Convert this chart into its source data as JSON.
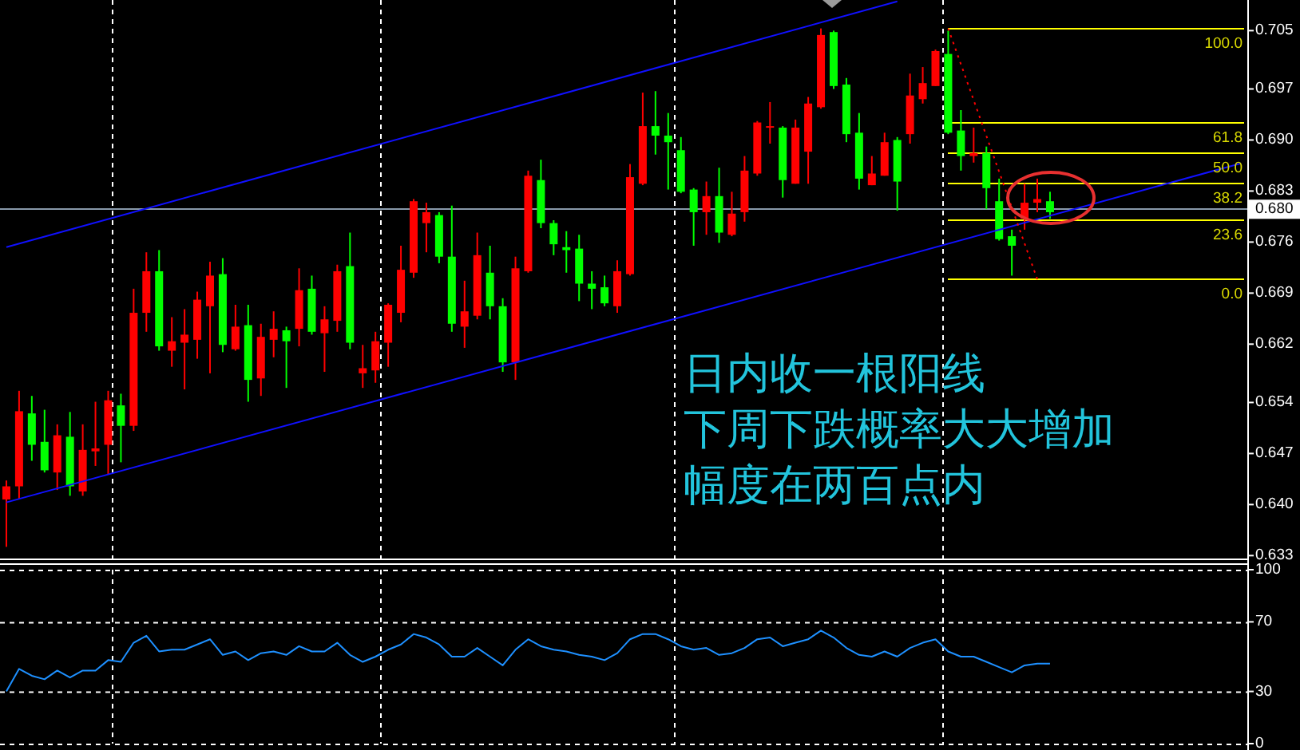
{
  "chart_data": [
    {
      "type": "candlestick",
      "annotations": [
        "日内收一根阳线",
        "下周下跌概率大大增加",
        "幅度在两百点内",
        {
          "text": "100.0",
          "y": 0.7053
        },
        {
          "text": "61.8",
          "y": 0.6924
        },
        {
          "text": "50.0",
          "y": 0.6882
        },
        {
          "text": "38.2",
          "y": 0.684
        },
        {
          "text": "23.6",
          "y": 0.679
        },
        {
          "text": "0.0",
          "y": 0.6709
        }
      ],
      "categories": [
        null,
        null,
        null,
        null,
        null,
        null,
        null,
        null,
        null,
        null,
        null,
        null,
        null,
        null,
        null,
        null,
        null,
        null,
        null,
        null,
        null,
        null,
        null,
        null,
        null,
        null,
        null,
        null,
        null,
        null,
        null,
        null,
        null,
        null,
        null,
        null,
        null,
        null,
        null,
        null,
        null,
        null,
        null,
        null,
        null,
        null,
        null,
        null,
        null,
        null,
        null,
        null,
        null,
        null,
        null,
        null,
        null,
        null,
        null,
        null,
        null,
        null,
        null,
        null,
        null,
        null,
        null,
        null,
        null,
        null,
        null,
        null,
        null,
        null,
        null,
        null,
        null,
        null,
        null,
        null,
        null,
        null,
        null,
        null,
        null,
        null,
        null,
        null,
        null,
        null,
        null,
        null,
        null,
        null,
        null,
        null,
        null,
        null
      ],
      "ohlc": [
        [
          0.6407,
          0.6433,
          0.6342,
          0.6425
        ],
        [
          0.6425,
          0.6556,
          0.6407,
          0.6528
        ],
        [
          0.6525,
          0.6549,
          0.646,
          0.6482
        ],
        [
          0.6486,
          0.653,
          0.6444,
          0.6447
        ],
        [
          0.6444,
          0.651,
          0.642,
          0.6495
        ],
        [
          0.6493,
          0.6527,
          0.6412,
          0.6425
        ],
        [
          0.6418,
          0.651,
          0.6412,
          0.6475
        ],
        [
          0.6473,
          0.6541,
          0.6453,
          0.6477
        ],
        [
          0.6482,
          0.6556,
          0.6442,
          0.6543
        ],
        [
          0.6536,
          0.6552,
          0.6458,
          0.6508
        ],
        [
          0.6508,
          0.6696,
          0.6501,
          0.6663
        ],
        [
          0.6663,
          0.6746,
          0.6637,
          0.672
        ],
        [
          0.672,
          0.6749,
          0.6611,
          0.6617
        ],
        [
          0.6611,
          0.6657,
          0.6589,
          0.6624
        ],
        [
          0.6622,
          0.6668,
          0.6558,
          0.6633
        ],
        [
          0.6626,
          0.6692,
          0.66,
          0.6681
        ],
        [
          0.6672,
          0.6733,
          0.658,
          0.6714
        ],
        [
          0.6716,
          0.6738,
          0.6609,
          0.6619
        ],
        [
          0.6613,
          0.6674,
          0.6611,
          0.6644
        ],
        [
          0.6646,
          0.6674,
          0.6541,
          0.6571
        ],
        [
          0.6573,
          0.6648,
          0.6549,
          0.663
        ],
        [
          0.6626,
          0.6665,
          0.6602,
          0.6641
        ],
        [
          0.6639,
          0.6644,
          0.656,
          0.6624
        ],
        [
          0.6641,
          0.6724,
          0.6617,
          0.6694
        ],
        [
          0.6696,
          0.6714,
          0.6633,
          0.6637
        ],
        [
          0.6635,
          0.6672,
          0.6582,
          0.6654
        ],
        [
          0.6652,
          0.6729,
          0.6637,
          0.672
        ],
        [
          0.6727,
          0.6773,
          0.6613,
          0.6622
        ],
        [
          0.658,
          0.6619,
          0.656,
          0.6587
        ],
        [
          0.6584,
          0.6637,
          0.6567,
          0.6624
        ],
        [
          0.6622,
          0.6676,
          0.6589,
          0.6674
        ],
        [
          0.6663,
          0.6755,
          0.665,
          0.6722
        ],
        [
          0.6718,
          0.6819,
          0.6711,
          0.6816
        ],
        [
          0.6786,
          0.6814,
          0.6746,
          0.6801
        ],
        [
          0.6797,
          0.6801,
          0.6731,
          0.674
        ],
        [
          0.674,
          0.681,
          0.6637,
          0.6648
        ],
        [
          0.6644,
          0.6707,
          0.6615,
          0.6665
        ],
        [
          0.6659,
          0.6773,
          0.6654,
          0.6742
        ],
        [
          0.6718,
          0.6755,
          0.6654,
          0.6672
        ],
        [
          0.6672,
          0.6683,
          0.6582,
          0.6595
        ],
        [
          0.6595,
          0.674,
          0.6571,
          0.6724
        ],
        [
          0.672,
          0.6858,
          0.6718,
          0.6851
        ],
        [
          0.6845,
          0.6873,
          0.6779,
          0.6786
        ],
        [
          0.6786,
          0.679,
          0.6742,
          0.6757
        ],
        [
          0.6753,
          0.6775,
          0.6718,
          0.6749
        ],
        [
          0.6751,
          0.677,
          0.6679,
          0.6703
        ],
        [
          0.6703,
          0.672,
          0.6668,
          0.6696
        ],
        [
          0.6698,
          0.6714,
          0.6672,
          0.6676
        ],
        [
          0.6672,
          0.6735,
          0.6663,
          0.672
        ],
        [
          0.6716,
          0.6867,
          0.6714,
          0.6849
        ],
        [
          0.684,
          0.6965,
          0.6838,
          0.6919
        ],
        [
          0.6919,
          0.6967,
          0.688,
          0.6906
        ],
        [
          0.6906,
          0.6937,
          0.6832,
          0.6897
        ],
        [
          0.6886,
          0.6904,
          0.6827,
          0.6829
        ],
        [
          0.6832,
          0.6834,
          0.6755,
          0.6801
        ],
        [
          0.6801,
          0.6843,
          0.677,
          0.6823
        ],
        [
          0.6823,
          0.6862,
          0.6759,
          0.6773
        ],
        [
          0.677,
          0.6829,
          0.6768,
          0.6799
        ],
        [
          0.6801,
          0.6878,
          0.6788,
          0.6858
        ],
        [
          0.6854,
          0.6926,
          0.6851,
          0.6924
        ],
        [
          0.6917,
          0.6952,
          0.6895,
          0.6919
        ],
        [
          0.6917,
          0.6919,
          0.6821,
          0.6845
        ],
        [
          0.684,
          0.6928,
          0.684,
          0.6917
        ],
        [
          0.6884,
          0.6959,
          0.684,
          0.695
        ],
        [
          0.6945,
          0.7053,
          0.6943,
          0.7044
        ],
        [
          0.7048,
          0.705,
          0.697,
          0.6974
        ],
        [
          0.6976,
          0.6985,
          0.6897,
          0.6908
        ],
        [
          0.691,
          0.6937,
          0.6832,
          0.6847
        ],
        [
          0.6838,
          0.6878,
          0.6838,
          0.6854
        ],
        [
          0.6851,
          0.691,
          0.6851,
          0.6897
        ],
        [
          0.69,
          0.6904,
          0.6803,
          0.6843
        ],
        [
          0.6908,
          0.6991,
          0.6895,
          0.6961
        ],
        [
          0.6956,
          0.7,
          0.695,
          0.6978
        ],
        [
          0.6974,
          0.7024,
          0.6974,
          0.7022
        ],
        [
          0.7018,
          0.705,
          0.6908,
          0.691
        ],
        [
          0.6913,
          0.6941,
          0.6858,
          0.6878
        ],
        [
          0.6878,
          0.6917,
          0.6869,
          0.6882
        ],
        [
          0.6882,
          0.6891,
          0.6805,
          0.6834
        ],
        [
          0.6816,
          0.6847,
          0.6762,
          0.6764
        ],
        [
          0.6768,
          0.6777,
          0.6714,
          0.6755
        ],
        [
          0.6792,
          0.684,
          0.6777,
          0.6814
        ],
        [
          0.6814,
          0.6847,
          0.6801,
          0.6819
        ],
        [
          0.6816,
          0.6829,
          0.6792,
          0.6801
        ],
        null,
        null,
        null,
        null,
        null,
        null,
        null,
        null,
        null,
        null,
        null,
        null,
        null,
        null,
        null
      ],
      "colors": [
        "#ff0000",
        "#ff0000",
        "#00ff00",
        "#00ff00",
        "#ff0000",
        "#00ff00",
        "#ff0000",
        "#ff0000",
        "#ff0000",
        "#00ff00",
        "#ff0000",
        "#ff0000",
        "#00ff00",
        "#ff0000",
        "#ff0000",
        "#ff0000",
        "#ff0000",
        "#00ff00",
        "#ff0000",
        "#00ff00",
        "#ff0000",
        "#ff0000",
        "#00ff00",
        "#ff0000",
        "#00ff00",
        "#ff0000",
        "#ff0000",
        "#00ff00",
        "#ff0000",
        "#ff0000",
        "#ff0000",
        "#ff0000",
        "#ff0000",
        "#ff0000",
        "#00ff00",
        "#00ff00",
        "#ff0000",
        "#ff0000",
        "#00ff00",
        "#00ff00",
        "#ff0000",
        "#ff0000",
        "#00ff00",
        "#00ff00",
        "#00ff00",
        "#00ff00",
        "#00ff00",
        "#00ff00",
        "#ff0000",
        "#ff0000",
        "#ff0000",
        "#00ff00",
        "#00ff00",
        "#00ff00",
        "#00ff00",
        "#ff0000",
        "#00ff00",
        "#ff0000",
        "#ff0000",
        "#ff0000",
        "#ff0000",
        "#00ff00",
        "#ff0000",
        "#ff0000",
        "#ff0000",
        "#00ff00",
        "#00ff00",
        "#00ff00",
        "#ff0000",
        "#ff0000",
        "#00ff00",
        "#ff0000",
        "#ff0000",
        "#ff0000",
        "#00ff00",
        "#00ff00",
        "#ff0000",
        "#00ff00",
        "#00ff00",
        "#00ff00",
        "#ff0000",
        "#ff0000",
        "#00ff00",
        null,
        null,
        null,
        null,
        null,
        null,
        null,
        null,
        null,
        null,
        null,
        null,
        null,
        null,
        null
      ],
      "series": [
        {
          "type": "line",
          "color": "#1010ff",
          "values": [
            0.6753,
            null,
            null,
            null,
            null,
            null,
            null,
            null,
            null,
            null,
            null,
            null,
            null,
            null,
            null,
            null,
            null,
            null,
            null,
            null,
            null,
            null,
            null,
            null,
            null,
            null,
            null,
            null,
            null,
            null,
            null,
            null,
            null,
            null,
            null,
            null,
            null,
            null,
            null,
            null,
            null,
            null,
            null,
            null,
            null,
            null,
            null,
            null,
            null,
            null,
            null,
            null,
            null,
            null,
            null,
            null,
            null,
            null,
            null,
            null,
            null,
            null,
            null,
            null,
            null,
            null,
            null,
            null,
            null,
            null,
            0.709,
            null,
            null,
            null,
            null,
            null,
            null,
            null,
            null,
            null,
            null,
            null,
            null,
            null,
            null,
            null,
            null,
            null,
            null,
            null,
            null,
            null,
            null,
            null,
            null,
            null,
            null,
            null
          ]
        },
        {
          "type": "line",
          "color": "#1010ff",
          "values": [
            0.6403,
            null,
            null,
            null,
            null,
            null,
            null,
            null,
            null,
            null,
            null,
            null,
            null,
            null,
            null,
            null,
            null,
            null,
            null,
            null,
            null,
            null,
            null,
            null,
            null,
            null,
            null,
            null,
            null,
            null,
            null,
            null,
            null,
            null,
            null,
            null,
            null,
            null,
            null,
            null,
            null,
            null,
            null,
            null,
            null,
            null,
            null,
            null,
            null,
            null,
            null,
            null,
            null,
            null,
            null,
            null,
            null,
            null,
            null,
            null,
            null,
            null,
            null,
            null,
            null,
            null,
            null,
            null,
            null,
            null,
            null,
            null,
            null,
            null,
            null,
            null,
            null,
            null,
            null,
            null,
            null,
            null,
            null,
            null,
            null,
            null,
            null,
            null,
            null,
            null,
            null,
            null,
            null,
            null,
            null,
            null,
            null,
            0.6868
          ]
        },
        {
          "type": "line",
          "color": "#ff0000",
          "line_style": "dotted",
          "values": [
            null,
            null,
            null,
            null,
            null,
            null,
            null,
            null,
            null,
            null,
            null,
            null,
            null,
            null,
            null,
            null,
            null,
            null,
            null,
            null,
            null,
            null,
            null,
            null,
            null,
            null,
            null,
            null,
            null,
            null,
            null,
            null,
            null,
            null,
            null,
            null,
            null,
            null,
            null,
            null,
            null,
            null,
            null,
            null,
            null,
            null,
            null,
            null,
            null,
            null,
            null,
            null,
            null,
            null,
            null,
            null,
            null,
            null,
            null,
            null,
            null,
            null,
            null,
            null,
            null,
            null,
            null,
            null,
            null,
            null,
            null,
            null,
            null,
            null,
            0.7053,
            null,
            null,
            null,
            null,
            null,
            null,
            0.6709,
            null,
            null,
            null,
            null,
            null,
            null,
            null,
            null,
            null,
            null,
            null,
            null,
            null,
            null,
            null,
            null
          ]
        }
      ],
      "ref_lines": [
        {
          "axis": "y",
          "value": 0.6805,
          "label": "0.680",
          "color": "#8899aa",
          "line_style": "solid"
        },
        {
          "axis": "y",
          "value": 0.7053,
          "color": "#ffff00"
        },
        {
          "axis": "y",
          "value": 0.6924,
          "color": "#ffff00"
        },
        {
          "axis": "y",
          "value": 0.6882,
          "color": "#ffff00"
        },
        {
          "axis": "y",
          "value": 0.684,
          "color": "#ffff00"
        },
        {
          "axis": "y",
          "value": 0.679,
          "color": "#ffff00"
        },
        {
          "axis": "y",
          "value": 0.6709,
          "color": "#ffff00"
        }
      ],
      "ylim": [
        0.6326,
        0.7092
      ],
      "yticks": [
        0.705,
        0.697,
        {
          "value": 0.69,
          "label": "0.690"
        },
        0.683,
        0.676,
        0.669,
        0.662,
        0.654,
        0.647,
        {
          "value": 0.64,
          "label": "0.640"
        },
        0.633
      ],
      "tick_labels": "y"
    },
    {
      "type": "line",
      "categories": [
        null,
        null,
        null,
        null,
        null,
        null,
        null,
        null,
        null,
        null,
        null,
        null,
        null,
        null,
        null,
        null,
        null,
        null,
        null,
        null,
        null,
        null,
        null,
        null,
        null,
        null,
        null,
        null,
        null,
        null,
        null,
        null,
        null,
        null,
        null,
        null,
        null,
        null,
        null,
        null,
        null,
        null,
        null,
        null,
        null,
        null,
        null,
        null,
        null,
        null,
        null,
        null,
        null,
        null,
        null,
        null,
        null,
        null,
        null,
        null,
        null,
        null,
        null,
        null,
        null,
        null,
        null,
        null,
        null,
        null,
        null,
        null,
        null,
        null,
        null,
        null,
        null,
        null,
        null,
        null,
        null,
        null,
        null,
        null,
        null,
        null,
        null,
        null,
        null,
        null,
        null,
        null,
        null,
        null,
        null,
        null,
        null,
        null
      ],
      "series": [
        {
          "color": "#1e90ff",
          "values": [
            30,
            43,
            39,
            37,
            42,
            38,
            42,
            42,
            48,
            47,
            58,
            62,
            53,
            54,
            54,
            57,
            60,
            51,
            53,
            48,
            52,
            53,
            51,
            56,
            53,
            53,
            58,
            51,
            47,
            50,
            54,
            57,
            63,
            61,
            57,
            50,
            50,
            55,
            50,
            45,
            54,
            60,
            56,
            54,
            53,
            51,
            50,
            48,
            52,
            60,
            63,
            63,
            60,
            56,
            54,
            55,
            51,
            52,
            55,
            60,
            61,
            56,
            58,
            60,
            65,
            61,
            55,
            51,
            50,
            53,
            50,
            55,
            58,
            60,
            53,
            50,
            50,
            47,
            44,
            41,
            45,
            46,
            46,
            null,
            null,
            null,
            null,
            null,
            null,
            null,
            null,
            null,
            null,
            null,
            null,
            null,
            null,
            null
          ]
        }
      ],
      "ylim": [
        0,
        100
      ],
      "yticks": [
        100,
        70,
        30,
        0
      ],
      "grid": "y",
      "tick_labels": "y"
    }
  ]
}
